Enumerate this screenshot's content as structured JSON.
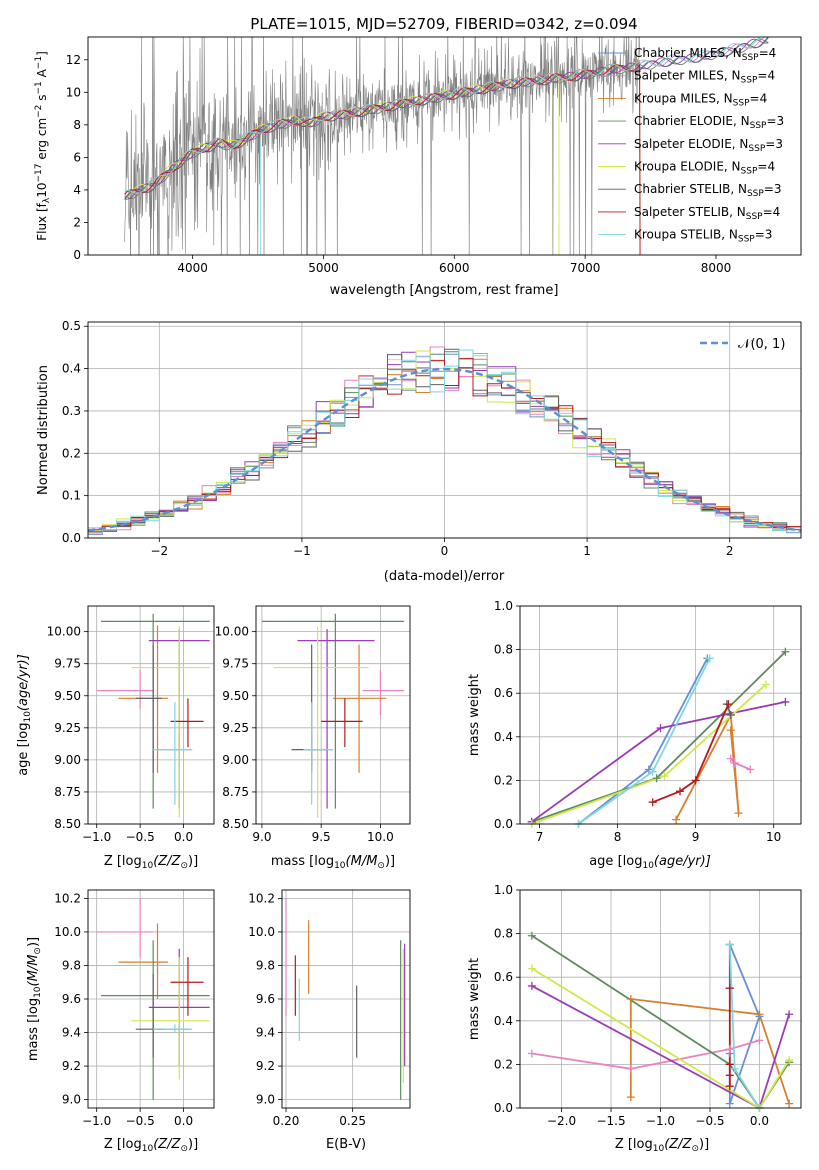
{
  "figure": {
    "title": "PLATE=1015, MJD=52709, FIBERID=0342, z=0.094"
  },
  "colors": {
    "chabrier_miles": "#6a8fd6",
    "salpeter_miles": "#e884c0",
    "kroupa_miles": "#d77f2c",
    "chabrier_elodie": "#5e8a5e",
    "salpeter_elodie": "#9a3bb5",
    "kroupa_elodie": "#cfe84a",
    "chabrier_stelib": "#606060",
    "salpeter_stelib": "#b51a1a",
    "kroupa_stelib": "#7fd7e0",
    "gaussian": "#5b8fd6",
    "grid": "#b0b0b0"
  },
  "chart_data": [
    {
      "id": "spectrum",
      "type": "line",
      "title": "PLATE=1015, MJD=52709, FIBERID=0342, z=0.094",
      "xlabel": "wavelength [Angstrom, rest frame]",
      "ylabel_main": "Flux [f",
      "ylabel_sub": "λ",
      "ylabel_rest": "10",
      "ylabel_exp1": "−17",
      "ylabel_mid": " erg cm",
      "ylabel_exp2": "−2",
      "ylabel_s": " s",
      "ylabel_exp3": "−1",
      "ylabel_end": " A",
      "ylabel_exp4": "−1",
      "ylabel_close": "]",
      "xlim": [
        3200,
        8650
      ],
      "ylim": [
        0,
        13.4
      ],
      "xticks": [
        4000,
        5000,
        6000,
        7000,
        8000
      ],
      "yticks": [
        0,
        2,
        4,
        6,
        8,
        10,
        12
      ],
      "legend": "top-right",
      "continuum": {
        "x": [
          3480,
          3600,
          3700,
          3800,
          3900,
          4000,
          4100,
          4200,
          4300,
          4400,
          4500,
          4600,
          4700,
          4800,
          4900,
          5000,
          5200,
          5400,
          5600,
          5800,
          6000,
          6200,
          6400,
          6600,
          6800,
          7000,
          7200,
          7400,
          7600,
          7800,
          8000,
          8200,
          8400
        ],
        "y": [
          3.6,
          4.0,
          4.3,
          5.0,
          5.7,
          6.3,
          6.6,
          6.9,
          6.7,
          7.1,
          7.6,
          7.9,
          8.1,
          8.3,
          8.1,
          8.5,
          8.7,
          9.0,
          9.3,
          9.6,
          9.9,
          10.2,
          10.5,
          10.7,
          10.9,
          11.1,
          11.4,
          11.6,
          11.9,
          12.1,
          12.4,
          12.8,
          13.3
        ]
      },
      "series": [
        {
          "name": "Chabrier MILES, N",
          "nsub": "SSP",
          "nval": "=4",
          "color": "#6a8fd6",
          "lw": 1
        },
        {
          "name": "Salpeter MILES, N",
          "nsub": "SSP",
          "nval": "=4",
          "color": "#e884c0",
          "lw": 1
        },
        {
          "name": "Kroupa MILES, N",
          "nsub": "SSP",
          "nval": "=4",
          "color": "#d77f2c",
          "lw": 1
        },
        {
          "name": "Chabrier ELODIE, N",
          "nsub": "SSP",
          "nval": "=3",
          "color": "#5e8a5e",
          "lw": 1
        },
        {
          "name": "Salpeter ELODIE, N",
          "nsub": "SSP",
          "nval": "=3",
          "color": "#9a3bb5",
          "lw": 1
        },
        {
          "name": "Kroupa ELODIE, N",
          "nsub": "SSP",
          "nval": "=4",
          "color": "#cfe84a",
          "lw": 1
        },
        {
          "name": "Chabrier STELIB, N",
          "nsub": "SSP",
          "nval": "=3",
          "color": "#606060",
          "lw": 1
        },
        {
          "name": "Salpeter STELIB, N",
          "nsub": "SSP",
          "nval": "=4",
          "color": "#b51a1a",
          "lw": 1
        },
        {
          "name": "Kroupa STELIB, N",
          "nsub": "SSP",
          "nval": "=3",
          "color": "#7fd7e0",
          "lw": 1
        }
      ]
    },
    {
      "id": "residuals",
      "type": "line",
      "xlabel": "(data-model)/error",
      "ylabel": "Normed distribution",
      "xlim": [
        -2.5,
        2.5
      ],
      "ylim": [
        0,
        0.51
      ],
      "xticks": [
        -2,
        -1,
        0,
        1,
        2
      ],
      "yticks": [
        0.0,
        0.1,
        0.2,
        0.3,
        0.4,
        0.5
      ],
      "legend": "top-right",
      "gaussian_label": "𝒩(0, 1)",
      "bin_width": 0.1
    },
    {
      "id": "age_vs_Z",
      "type": "scatter",
      "xlabel": "Z [log",
      "xlabel_sub": "10",
      "xlabel_rest": "(Z/Z",
      "xlabel_sun": "⊙",
      "xlabel_close": ")]",
      "ylabel": "age  [log",
      "ylabel_sub": "10",
      "ylabel_rest": "(age/yr)]",
      "xlim": [
        -1.1,
        0.35
      ],
      "ylim": [
        8.5,
        10.2
      ],
      "xticks": [
        -1.0,
        -0.5,
        0.0
      ],
      "xtick_labels": [
        "−1.0",
        "−0.5",
        "0.0"
      ],
      "yticks": [
        8.5,
        8.75,
        9.0,
        9.25,
        9.5,
        9.75,
        10.0
      ],
      "ytick_labels": [
        "8.50",
        "8.75",
        "9.00",
        "9.25",
        "9.50",
        "9.75",
        "10.00"
      ],
      "points": [
        {
          "x": -0.05,
          "y": 9.08,
          "xe": [
            -0.3,
            0.08
          ],
          "ye": [
            8.95,
            9.2
          ],
          "color": "#6a8fd6"
        },
        {
          "x": -0.5,
          "y": 9.54,
          "xe": [
            -1.0,
            -0.35
          ],
          "ye": [
            9.4,
            9.7
          ],
          "color": "#e884c0"
        },
        {
          "x": -0.3,
          "y": 9.48,
          "xe": [
            -0.75,
            -0.18
          ],
          "ye": [
            8.9,
            10.05
          ],
          "color": "#d77f2c"
        },
        {
          "x": -0.35,
          "y": 10.08,
          "xe": [
            -0.95,
            0.3
          ],
          "ye": [
            8.62,
            10.14
          ],
          "color": "#5e8a5e"
        },
        {
          "x": -0.05,
          "y": 9.93,
          "xe": [
            -0.4,
            0.3
          ],
          "ye": [
            8.62,
            10.02
          ],
          "color": "#9a3bb5"
        },
        {
          "x": -0.05,
          "y": 9.72,
          "xe": [
            -0.6,
            0.3
          ],
          "ye": [
            8.55,
            10.04
          ],
          "color": "#cfe84a"
        },
        {
          "x": -0.35,
          "y": 9.48,
          "xe": [
            -0.55,
            -0.25
          ],
          "ye": [
            8.9,
            9.9
          ],
          "color": "#606060"
        },
        {
          "x": 0.05,
          "y": 9.3,
          "xe": [
            -0.15,
            0.23
          ],
          "ye": [
            9.1,
            9.48
          ],
          "color": "#b51a1a"
        },
        {
          "x": -0.1,
          "y": 9.08,
          "xe": [
            -0.35,
            0.1
          ],
          "ye": [
            8.65,
            9.45
          ],
          "color": "#7fd7e0"
        }
      ]
    },
    {
      "id": "age_vs_mass",
      "type": "scatter",
      "xlabel": "mass [log",
      "xlabel_sub": "10",
      "xlabel_rest": "(M/M",
      "xlabel_sun": "⊙",
      "xlabel_close": ")]",
      "xlim": [
        8.95,
        10.25
      ],
      "ylim": [
        8.5,
        10.2
      ],
      "xticks": [
        9.0,
        9.5,
        10.0
      ],
      "xtick_labels": [
        "9.0",
        "9.5",
        "10.0"
      ],
      "yticks": [
        8.5,
        8.75,
        9.0,
        9.25,
        9.5,
        9.75,
        10.0
      ],
      "ytick_labels": [
        "8.50",
        "8.75",
        "9.00",
        "9.25",
        "9.50",
        "9.75",
        "10.00"
      ],
      "points": [
        {
          "x": 9.42,
          "y": 9.08,
          "xe": [
            9.38,
            9.6
          ],
          "ye": [
            8.95,
            9.2
          ],
          "color": "#6a8fd6"
        },
        {
          "x": 10.0,
          "y": 9.54,
          "xe": [
            9.85,
            10.2
          ],
          "ye": [
            9.35,
            9.7
          ],
          "color": "#e884c0"
        },
        {
          "x": 9.82,
          "y": 9.48,
          "xe": [
            9.6,
            10.05
          ],
          "ye": [
            8.9,
            9.9
          ],
          "color": "#d77f2c"
        },
        {
          "x": 9.62,
          "y": 10.08,
          "xe": [
            9.0,
            10.2
          ],
          "ye": [
            8.62,
            10.14
          ],
          "color": "#5e8a5e"
        },
        {
          "x": 9.55,
          "y": 9.93,
          "xe": [
            9.3,
            9.95
          ],
          "ye": [
            8.62,
            10.02
          ],
          "color": "#9a3bb5"
        },
        {
          "x": 9.47,
          "y": 9.72,
          "xe": [
            9.1,
            9.9
          ],
          "ye": [
            8.55,
            10.04
          ],
          "color": "#cfe84a"
        },
        {
          "x": 9.42,
          "y": 9.08,
          "xe": [
            9.25,
            9.55
          ],
          "ye": [
            8.9,
            9.9
          ],
          "color": "#606060"
        },
        {
          "x": 9.7,
          "y": 9.3,
          "xe": [
            9.5,
            9.85
          ],
          "ye": [
            9.1,
            9.48
          ],
          "color": "#b51a1a"
        },
        {
          "x": 9.42,
          "y": 9.08,
          "xe": [
            9.35,
            9.6
          ],
          "ye": [
            8.65,
            9.45
          ],
          "color": "#7fd7e0"
        }
      ]
    },
    {
      "id": "weight_vs_age",
      "type": "line",
      "xlabel": "age  [log",
      "xlabel_sub": "10",
      "xlabel_rest": "(age/yr)]",
      "ylabel": "mass weight",
      "xlim": [
        6.75,
        10.35
      ],
      "ylim": [
        0.0,
        1.0
      ],
      "xticks": [
        7,
        8,
        9,
        10
      ],
      "yticks": [
        0.0,
        0.2,
        0.4,
        0.6,
        0.8,
        1.0
      ],
      "series": [
        {
          "color": "#6a8fd6",
          "x": [
            7.5,
            8.4,
            9.15
          ],
          "y": [
            0.0,
            0.25,
            0.76
          ]
        },
        {
          "color": "#e884c0",
          "x": [
            9.45,
            9.5,
            9.7
          ],
          "y": [
            0.3,
            0.28,
            0.25
          ]
        },
        {
          "color": "#d77f2c",
          "x": [
            8.75,
            9.45,
            9.55,
            9.45
          ],
          "y": [
            0.02,
            0.5,
            0.05,
            0.43
          ]
        },
        {
          "color": "#5e8a5e",
          "x": [
            6.9,
            8.5,
            10.15
          ],
          "y": [
            0.01,
            0.21,
            0.79
          ]
        },
        {
          "color": "#9a3bb5",
          "x": [
            6.9,
            8.55,
            10.15
          ],
          "y": [
            0.01,
            0.44,
            0.56
          ]
        },
        {
          "color": "#cfe84a",
          "x": [
            6.9,
            8.6,
            9.9
          ],
          "y": [
            0.0,
            0.22,
            0.64
          ]
        },
        {
          "color": "#606060",
          "x": [
            9.4,
            9.45
          ],
          "y": [
            0.55,
            0.5
          ]
        },
        {
          "color": "#b51a1a",
          "x": [
            8.45,
            8.8,
            9.0,
            9.42
          ],
          "y": [
            0.1,
            0.15,
            0.2,
            0.55
          ]
        },
        {
          "color": "#7fd7e0",
          "x": [
            7.5,
            8.45,
            9.18
          ],
          "y": [
            0.0,
            0.24,
            0.76
          ]
        }
      ]
    },
    {
      "id": "mass_vs_Z",
      "type": "scatter",
      "xlabel": "Z [log",
      "xlabel_sub": "10",
      "xlabel_rest": "(Z/Z",
      "xlabel_sun": "⊙",
      "xlabel_close": ")]",
      "ylabel": "mass [log",
      "ylabel_sub": "10",
      "ylabel_rest": "(M/M",
      "ylabel_sun": "⊙",
      "ylabel_close": ")]",
      "xlim": [
        -1.1,
        0.35
      ],
      "ylim": [
        8.95,
        10.25
      ],
      "xticks": [
        -1.0,
        -0.5,
        0.0
      ],
      "xtick_labels": [
        "−1.0",
        "−0.5",
        "0.0"
      ],
      "yticks": [
        9.0,
        9.2,
        9.4,
        9.6,
        9.8,
        10.0,
        10.2
      ],
      "ytick_labels": [
        "9.0",
        "9.2",
        "9.4",
        "9.6",
        "9.8",
        "10.0",
        "10.2"
      ],
      "points": [
        {
          "x": -0.05,
          "y": 9.42,
          "xe": [
            -0.3,
            0.08
          ],
          "ye": [
            9.38,
            9.44
          ],
          "color": "#6a8fd6"
        },
        {
          "x": -0.5,
          "y": 10.0,
          "xe": [
            -1.0,
            -0.35
          ],
          "ye": [
            9.85,
            10.2
          ],
          "color": "#e884c0"
        },
        {
          "x": -0.3,
          "y": 9.82,
          "xe": [
            -0.75,
            -0.18
          ],
          "ye": [
            9.6,
            10.05
          ],
          "color": "#d77f2c"
        },
        {
          "x": -0.35,
          "y": 9.62,
          "xe": [
            -0.95,
            0.3
          ],
          "ye": [
            9.0,
            9.95
          ],
          "color": "#5e8a5e"
        },
        {
          "x": -0.05,
          "y": 9.55,
          "xe": [
            -0.4,
            0.3
          ],
          "ye": [
            9.2,
            9.9
          ],
          "color": "#9a3bb5"
        },
        {
          "x": -0.05,
          "y": 9.47,
          "xe": [
            -0.6,
            0.3
          ],
          "ye": [
            9.12,
            9.85
          ],
          "color": "#cfe84a"
        },
        {
          "x": -0.35,
          "y": 9.42,
          "xe": [
            -0.55,
            -0.25
          ],
          "ye": [
            9.25,
            9.75
          ],
          "color": "#606060"
        },
        {
          "x": 0.05,
          "y": 9.7,
          "xe": [
            -0.15,
            0.23
          ],
          "ye": [
            9.5,
            9.85
          ],
          "color": "#b51a1a"
        },
        {
          "x": -0.1,
          "y": 9.42,
          "xe": [
            -0.35,
            0.1
          ],
          "ye": [
            9.4,
            9.45
          ],
          "color": "#7fd7e0"
        }
      ]
    },
    {
      "id": "mass_vs_ebv",
      "type": "scatter",
      "xlabel": "E(B-V)",
      "xlim": [
        0.197,
        0.293
      ],
      "ylim": [
        8.95,
        10.25
      ],
      "xticks": [
        0.2,
        0.25
      ],
      "xtick_labels": [
        "0.20",
        "0.25"
      ],
      "yticks": [
        9.0,
        9.2,
        9.4,
        9.6,
        9.8,
        10.0,
        10.2
      ],
      "ytick_labels": [
        "9.0",
        "9.2",
        "9.4",
        "9.6",
        "9.8",
        "10.0",
        "10.2"
      ],
      "points": [
        {
          "x": 0.2,
          "y": 9.9,
          "ye": [
            9.5,
            10.2
          ],
          "color": "#e884c0"
        },
        {
          "x": 0.207,
          "y": 9.6,
          "ye": [
            9.5,
            9.86
          ],
          "color": "#b51a1a"
        },
        {
          "x": 0.21,
          "y": 9.55,
          "ye": [
            9.35,
            9.72
          ],
          "color": "#7fd7e0"
        },
        {
          "x": 0.217,
          "y": 9.85,
          "ye": [
            9.63,
            10.07
          ],
          "color": "#d77f2c"
        },
        {
          "x": 0.253,
          "y": 9.45,
          "ye": [
            9.25,
            9.68
          ],
          "color": "#606060"
        },
        {
          "x": 0.286,
          "y": 9.5,
          "ye": [
            9.0,
            9.95
          ],
          "color": "#5e8a5e"
        },
        {
          "x": 0.288,
          "y": 9.5,
          "ye": [
            9.1,
            9.9
          ],
          "color": "#cfe84a"
        },
        {
          "x": 0.289,
          "y": 9.6,
          "ye": [
            9.2,
            9.93
          ],
          "color": "#9a3bb5"
        }
      ]
    },
    {
      "id": "weight_vs_Z",
      "type": "line",
      "xlabel": "Z [log",
      "xlabel_sub": "10",
      "xlabel_rest": "(Z/Z",
      "xlabel_sun": "⊙",
      "xlabel_close": ")]",
      "ylabel": "mass weight",
      "xlim": [
        -2.42,
        0.42
      ],
      "ylim": [
        0.0,
        1.0
      ],
      "xticks": [
        -2.0,
        -1.5,
        -1.0,
        -0.5,
        0.0
      ],
      "xtick_labels": [
        "−2.0",
        "−1.5",
        "−1.0",
        "−0.5",
        "0.0"
      ],
      "yticks": [
        0.0,
        0.2,
        0.4,
        0.6,
        0.8,
        1.0
      ],
      "series": [
        {
          "color": "#6a8fd6",
          "x": [
            -0.3,
            -0.3,
            0.0,
            -0.3
          ],
          "y": [
            0.25,
            0.02,
            0.42,
            0.75
          ]
        },
        {
          "color": "#e884c0",
          "x": [
            -2.3,
            -1.3,
            -0.3,
            0.0
          ],
          "y": [
            0.25,
            0.18,
            0.27,
            0.31
          ]
        },
        {
          "color": "#d77f2c",
          "x": [
            -1.3,
            -1.3,
            0.0,
            0.3
          ],
          "y": [
            0.05,
            0.5,
            0.43,
            0.02
          ]
        },
        {
          "color": "#5e8a5e",
          "x": [
            -2.3,
            -0.3,
            0.0,
            0.3
          ],
          "y": [
            0.79,
            0.2,
            0.0,
            0.21
          ]
        },
        {
          "color": "#9a3bb5",
          "x": [
            -2.3,
            0.0,
            0.3
          ],
          "y": [
            0.56,
            0.0,
            0.43
          ]
        },
        {
          "color": "#cfe84a",
          "x": [
            -2.3,
            0.0,
            0.3
          ],
          "y": [
            0.64,
            0.0,
            0.22
          ]
        },
        {
          "color": "#606060",
          "x": [
            -0.3,
            -0.3
          ],
          "y": [
            0.55,
            0.75
          ]
        },
        {
          "color": "#b51a1a",
          "x": [
            -0.3,
            -0.3,
            -0.3,
            -0.3
          ],
          "y": [
            0.1,
            0.15,
            0.2,
            0.55
          ]
        },
        {
          "color": "#7fd7e0",
          "x": [
            -0.3,
            -0.25,
            0.0
          ],
          "y": [
            0.75,
            0.18,
            0.0
          ]
        }
      ]
    }
  ]
}
